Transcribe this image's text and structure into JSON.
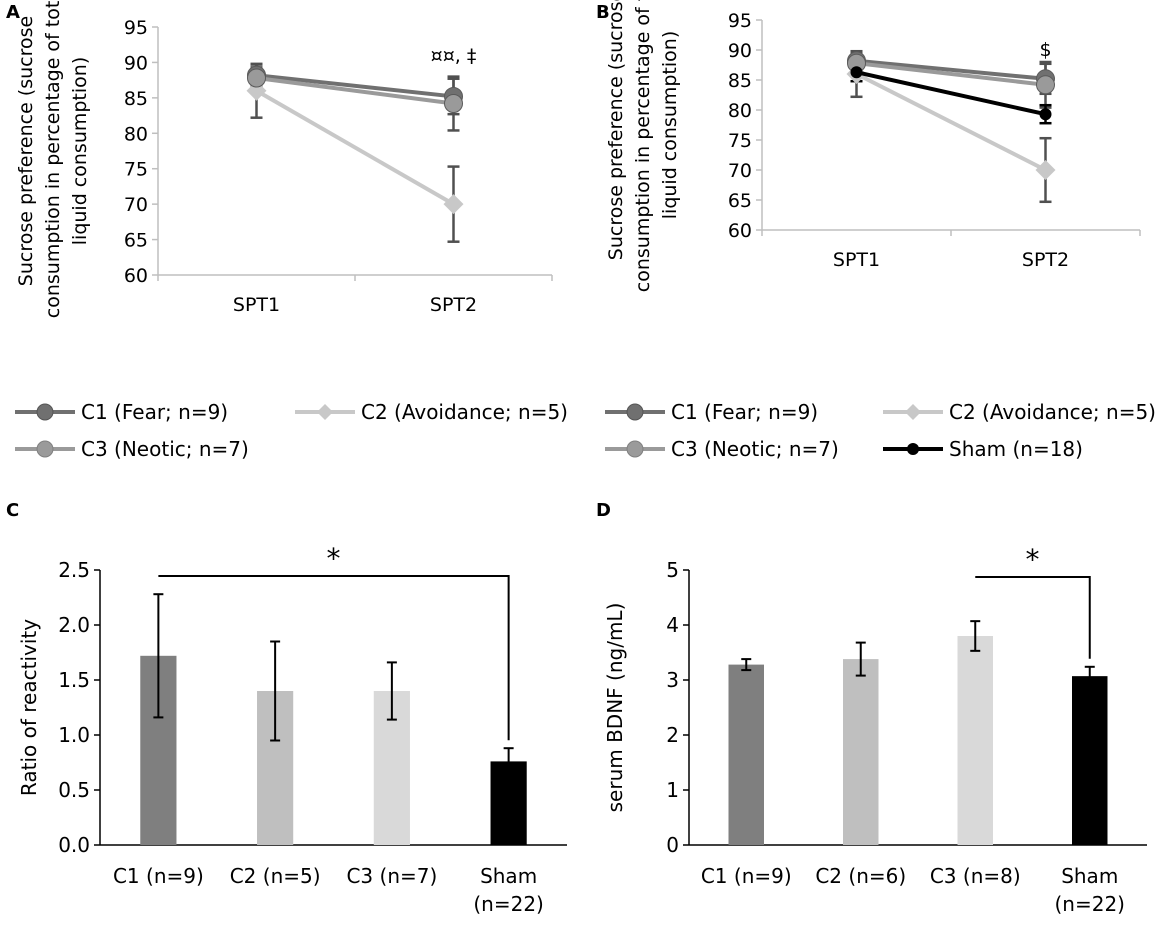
{
  "panels": {
    "A": {
      "label": "A"
    },
    "B": {
      "label": "B"
    },
    "C": {
      "label": "C"
    },
    "D": {
      "label": "D"
    }
  },
  "chart_data": [
    {
      "id": "A",
      "type": "line",
      "ylabel": "Sucrose preference (sucrose consumption in percentage of total liquid consumption)",
      "ylabel_lines": [
        "Sucrose preference (sucrose",
        "consumption in percentage of total",
        "liquid consumption)"
      ],
      "xlabel": "",
      "ylim": [
        60,
        95
      ],
      "yticks": [
        60,
        65,
        70,
        75,
        80,
        85,
        90,
        95
      ],
      "categories": [
        "SPT1",
        "SPT2"
      ],
      "series": [
        {
          "name": "C1 (Fear; n=9)",
          "values": [
            88.2,
            85.2
          ],
          "err": [
            1.5,
            2.5
          ],
          "color": "#707070",
          "marker": "circle"
        },
        {
          "name": "C2 (Avoidance; n=5)",
          "values": [
            86.0,
            70.0
          ],
          "err": [
            3.8,
            5.3
          ],
          "color": "#c8c8c8",
          "marker": "diamond"
        },
        {
          "name": "C3 (Neotic; n=7)",
          "values": [
            87.8,
            84.2
          ],
          "err": [
            1.5,
            3.8
          ],
          "color": "#9a9a9a",
          "marker": "circle"
        }
      ],
      "annotations": [
        "¤¤, ‡"
      ],
      "legend": "bottom"
    },
    {
      "id": "B",
      "type": "line",
      "ylabel": "Sucrose preference (sucrose consumption in percentage of total liquid consumption)",
      "ylabel_lines": [
        "Sucrose preference (sucrose",
        "consumption in percentage of total",
        "liquid consumption)"
      ],
      "xlabel": "",
      "ylim": [
        60,
        95
      ],
      "yticks": [
        60,
        65,
        70,
        75,
        80,
        85,
        90,
        95
      ],
      "categories": [
        "SPT1",
        "SPT2"
      ],
      "series": [
        {
          "name": "C1 (Fear; n=9)",
          "values": [
            88.2,
            85.2
          ],
          "err": [
            1.5,
            2.5
          ],
          "color": "#707070",
          "marker": "circle"
        },
        {
          "name": "C2 (Avoidance; n=5)",
          "values": [
            86.0,
            70.0
          ],
          "err": [
            3.8,
            5.3
          ],
          "color": "#c8c8c8",
          "marker": "diamond"
        },
        {
          "name": "C3 (Neotic; n=7)",
          "values": [
            87.8,
            84.2
          ],
          "err": [
            1.5,
            3.8
          ],
          "color": "#9a9a9a",
          "marker": "circle"
        },
        {
          "name": "Sham (n=18)",
          "values": [
            86.3,
            79.3
          ],
          "err": [
            1.5,
            1.5
          ],
          "color": "#000000",
          "marker": "circle"
        }
      ],
      "annotations": [
        "$"
      ],
      "legend": "bottom"
    },
    {
      "id": "C",
      "type": "bar",
      "ylabel": "Ratio of reactivity",
      "xlabel": "",
      "ylim": [
        0,
        2.5
      ],
      "yticks": [
        "0.0",
        "0.5",
        "1.0",
        "1.5",
        "2.0",
        "2.5"
      ],
      "categories": [
        "C1 (n=9)",
        "C2 (n=5)",
        "C3 (n=7)",
        "Sham (n=22)"
      ],
      "category_lines": [
        [
          "C1 (n=9)"
        ],
        [
          "C2 (n=5)"
        ],
        [
          "C3 (n=7)"
        ],
        [
          "Sham",
          "(n=22)"
        ]
      ],
      "values": [
        1.72,
        1.4,
        1.4,
        0.76
      ],
      "err": [
        0.56,
        0.45,
        0.26,
        0.12
      ],
      "colors": [
        "#7f7f7f",
        "#bfbfbf",
        "#d9d9d9",
        "#000000"
      ],
      "significance": {
        "from": 0,
        "to": 3,
        "label": "*"
      }
    },
    {
      "id": "D",
      "type": "bar",
      "ylabel": "serum BDNF (ng/mL)",
      "xlabel": "",
      "ylim": [
        0,
        5
      ],
      "yticks": [
        "0",
        "1",
        "2",
        "3",
        "4",
        "5"
      ],
      "categories": [
        "C1 (n=9)",
        "C2 (n=6)",
        "C3 (n=8)",
        "Sham (n=22)"
      ],
      "category_lines": [
        [
          "C1 (n=9)"
        ],
        [
          "C2 (n=6)"
        ],
        [
          "C3 (n=8)"
        ],
        [
          "Sham",
          "(n=22)"
        ]
      ],
      "values": [
        3.28,
        3.38,
        3.8,
        3.07
      ],
      "err": [
        0.1,
        0.3,
        0.27,
        0.17
      ],
      "colors": [
        "#7f7f7f",
        "#bfbfbf",
        "#d9d9d9",
        "#000000"
      ],
      "significance": {
        "from": 2,
        "to": 3,
        "label": "*"
      }
    }
  ]
}
